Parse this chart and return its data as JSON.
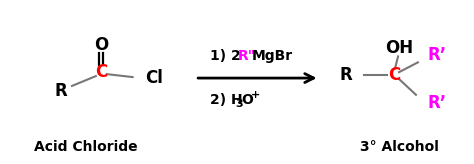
{
  "bg_color": "#ffffff",
  "black": "#000000",
  "red": "#ff0000",
  "magenta": "#ff00ff",
  "gray": "#777777",
  "fig_width": 4.74,
  "fig_height": 1.64,
  "dpi": 100,
  "acid_chloride_label": "Acid Chloride",
  "alcohol_label": "3° Alcohol",
  "R_label": "R",
  "C_label": "C",
  "O_label": "O",
  "Cl_label": "Cl",
  "OH_label": "OH",
  "Rp_label": "R’",
  "font_bold": "bold",
  "fs_chem": 12,
  "fs_label": 10,
  "fs_sub": 8
}
